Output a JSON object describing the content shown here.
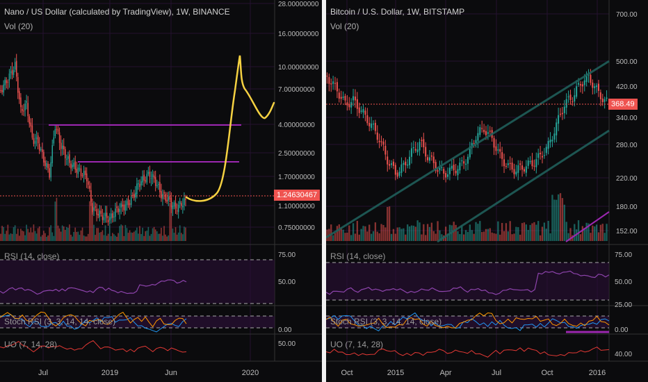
{
  "left": {
    "title": "Nano / US Dollar (calculated by TradingView), 1W, BINANCE",
    "vol_label": "Vol (20)",
    "rsi_label": "RSI (14, close)",
    "stoch_label": "Stoch RSI (3, 3, 14, 14, close)",
    "uo_label": "UO (7, 14, 28)",
    "current_price": "1.24630467",
    "price_ticks": [
      "28.00000000",
      "16.00000000",
      "10.00000000",
      "7.00000000",
      "4.00000000",
      "2.50000000",
      "1.70000000",
      "1.10000000",
      "0.75000000"
    ],
    "rsi_ticks": [
      "75.00",
      "50.00"
    ],
    "stoch_ticks": [
      "0.00"
    ],
    "uo_ticks": [
      "50.00"
    ],
    "time_ticks": [
      "Jul",
      "2019",
      "Jun",
      "2020"
    ]
  },
  "right": {
    "title": "Bitcoin / U.S. Dollar, 1W, BITSTAMP",
    "vol_label": "Vol (20)",
    "rsi_label": "RSI (14, close)",
    "stoch_label": "Stoch RSI (3, 3, 14, 14, close)",
    "uo_label": "UO (7, 14, 28)",
    "current_price": "368.49",
    "price_ticks": [
      "700.00",
      "500.00",
      "420.00",
      "340.00",
      "280.00",
      "220.00",
      "180.00",
      "152.00"
    ],
    "rsi_ticks": [
      "75.00",
      "50.00",
      "25.00"
    ],
    "stoch_ticks": [
      "0.00"
    ],
    "uo_ticks": [
      "40.00"
    ],
    "time_ticks": [
      "Oct",
      "2015",
      "Apr",
      "Jul",
      "Oct",
      "2016"
    ]
  },
  "colors": {
    "up": "#26a69a",
    "down": "#ef5350",
    "purple": "#9c27b0",
    "yellow": "#f5d142",
    "rsi_line": "#8e44ad",
    "band_fill": "#2a0f36"
  },
  "chart_data": [
    {
      "type": "candlestick",
      "title": "Nano / US Dollar (calculated by TradingView), 1W, BINANCE",
      "ylim": [
        0.6,
        28
      ],
      "log_scale": true,
      "last_price": 1.24630467,
      "horizontal_levels": [
        4.0,
        2.25
      ],
      "projection": "yellow hand-drawn path rising to ~10 then consolidating ~6"
    },
    {
      "type": "candlestick",
      "title": "Bitcoin / U.S. Dollar, 1W, BITSTAMP",
      "ylim": [
        140,
        750
      ],
      "log_scale": true,
      "last_price": 368.49,
      "channel": "ascending parallel channel (teal)"
    }
  ]
}
